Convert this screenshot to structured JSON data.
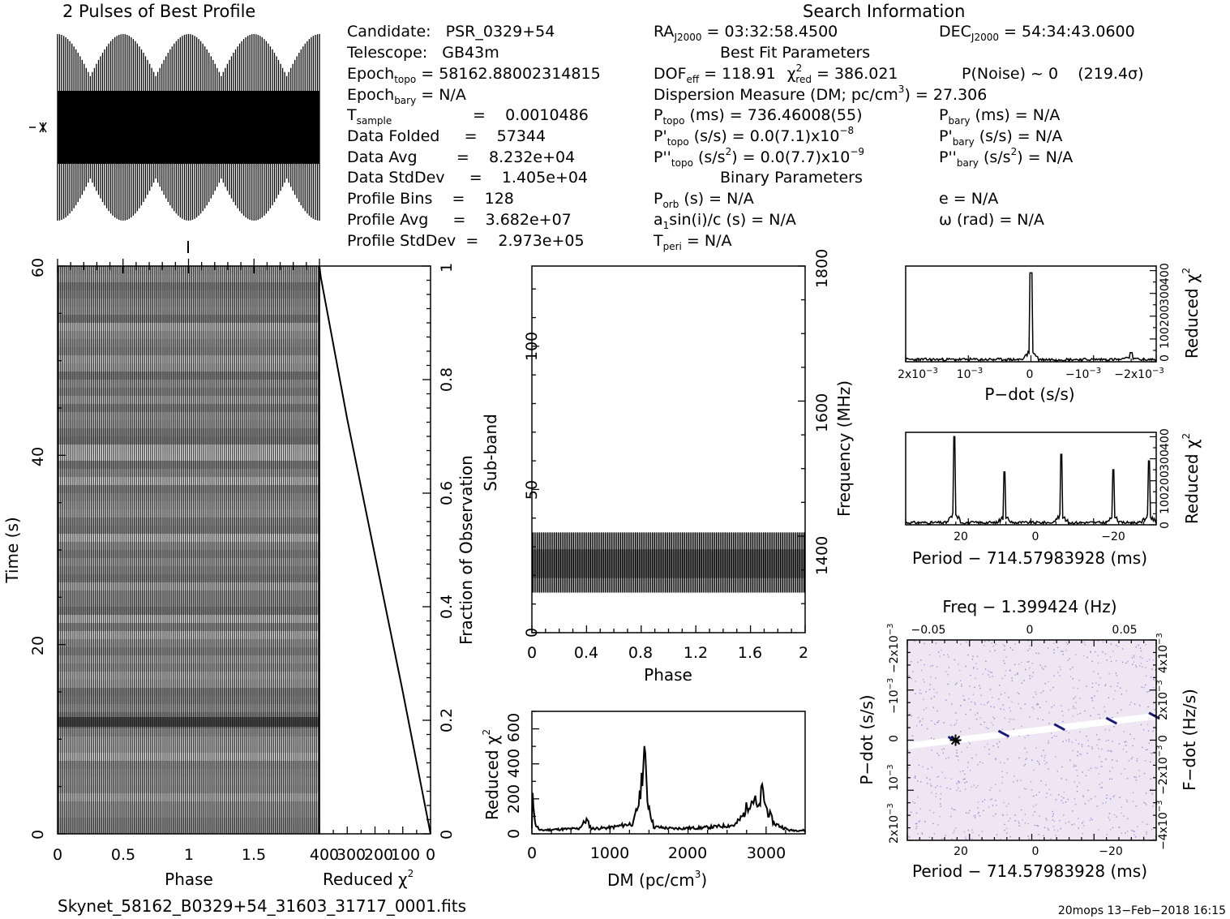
{
  "header": {
    "profile_title": "2 Pulses of Best Profile",
    "search_title": "Search Information",
    "best_fit_title": "Best Fit Parameters",
    "binary_title": "Binary Parameters"
  },
  "info_left": {
    "candidate": "Candidate:   PSR_0329+54",
    "telescope": "Telescope:   GB43m",
    "epoch_topo": " = 58162.88002314815",
    "epoch_bary": " = N/A",
    "t_sample": "=    0.0010486",
    "data_folded": "Data Folded     =    57344",
    "data_avg": "Data Avg        =    8.232e+04",
    "data_stddev": "Data StdDev     =    1.405e+04",
    "profile_bins": "Profile Bins    =    128",
    "profile_avg": "Profile Avg     =    3.682e+07",
    "profile_stddev": "Profile StdDev  =    2.973e+05"
  },
  "info_mid": {
    "ra": " = 03:32:58.4500",
    "dof": " = 118.91",
    "chi2": " = 386.021",
    "dm": "Dispersion Measure (DM; pc/cm",
    "dm_value": ") = 27.306",
    "p_topo": " (ms) =  736.46008(55)",
    "pd_topo": " (s/s) = 0.0(7.1)x10",
    "pd_exp": "−8",
    "pdd_topo": " (s/s",
    "pdd_topo_rest": ") = 0.0(7.7)x10",
    "pdd_exp": "−9",
    "p_orb": " (s) = N/A",
    "a1": "sin(i)/c (s) = N/A",
    "t_peri": " = N/A"
  },
  "info_right": {
    "dec": " = 54:34:43.0600",
    "p_noise": "P(Noise) ~ 0    (219.4σ)",
    "p_bary": " (ms) = N/A",
    "pd_bary": " (s/s) = N/A",
    "pdd_bary": " (s/s",
    "pdd_bary_rest": ") = N/A",
    "e": "e = N/A",
    "omega": "ω (rad) = N/A"
  },
  "footer": {
    "filename": "Skynet_58162_B0329+54_31603_31717_0001.fits",
    "stamp": "20mops 13−Feb−2018 16:15"
  },
  "axes": {
    "phase": "Phase",
    "time": "Time (s)",
    "reduced_chi2": "Reduced χ",
    "fraction": "Fraction of Observation",
    "subband": "Sub-band",
    "frequency": "Frequency (MHz)",
    "dm": "DM (pc/cm",
    "pdot": "P−dot (s/s)",
    "period": "Period − 714.57983928 (ms)",
    "freq_top": "Freq − 1.399424 (Hz)",
    "fdot": "F−dot (Hz/s)"
  },
  "chart_data": [
    {
      "type": "line",
      "name": "profile",
      "xlim": [
        0,
        2
      ],
      "cycles": 64,
      "envelope_period": 0.5,
      "amplitude_max": 1.0,
      "amplitude_min": 0.55
    },
    {
      "type": "heatmap",
      "name": "time-phase",
      "xlabel": "Phase",
      "ylabel": "Time (s)",
      "xlim": [
        0,
        2
      ],
      "ylim": [
        0,
        60
      ],
      "xticks": [
        0,
        0.5,
        1,
        1.5
      ],
      "yticks": [
        0,
        20,
        40,
        60
      ]
    },
    {
      "type": "line",
      "name": "reduced-chi2-vs-time",
      "xlabel": "Reduced χ2",
      "xlim": [
        400,
        0
      ],
      "xticks": [
        400,
        300,
        200,
        100,
        0
      ],
      "points": [
        [
          400,
          1.0
        ],
        [
          395,
          0.98
        ],
        [
          300,
          0.73
        ],
        [
          200,
          0.49
        ],
        [
          100,
          0.25
        ],
        [
          0,
          0.0
        ]
      ],
      "y2label": "Fraction of Observation",
      "y2ticks": [
        0,
        0.2,
        0.4,
        0.6,
        0.8,
        1
      ]
    },
    {
      "type": "heatmap",
      "name": "subband-phase",
      "xlabel": "Phase",
      "ylabel": "Sub-band",
      "xlim": [
        0,
        2
      ],
      "ylim": [
        0,
        128
      ],
      "xticks": [
        0,
        0.4,
        0.8,
        1.2,
        1.6,
        2
      ],
      "yticks": [
        0,
        50,
        100
      ],
      "band_range": [
        14,
        35
      ],
      "y2label": "Frequency (MHz)",
      "y2lim": [
        1257,
        1800
      ],
      "y2ticks": [
        1400,
        1600,
        1800
      ]
    },
    {
      "type": "line",
      "name": "dm-chi2",
      "xlabel": "DM (pc/cm3)",
      "ylabel": "Reduced χ2",
      "xlim": [
        0,
        3500
      ],
      "ylim": [
        0,
        700
      ],
      "xticks": [
        0,
        1000,
        2000,
        3000
      ],
      "yticks": [
        0,
        200,
        400,
        600
      ],
      "points": [
        [
          0,
          30
        ],
        [
          10,
          260
        ],
        [
          40,
          60
        ],
        [
          100,
          20
        ],
        [
          300,
          25
        ],
        [
          600,
          30
        ],
        [
          700,
          80
        ],
        [
          760,
          30
        ],
        [
          1000,
          35
        ],
        [
          1300,
          60
        ],
        [
          1380,
          200
        ],
        [
          1440,
          470
        ],
        [
          1480,
          200
        ],
        [
          1560,
          40
        ],
        [
          1800,
          30
        ],
        [
          2200,
          35
        ],
        [
          2600,
          50
        ],
        [
          2700,
          100
        ],
        [
          2780,
          180
        ],
        [
          2850,
          200
        ],
        [
          2900,
          130
        ],
        [
          2950,
          250
        ],
        [
          3000,
          150
        ],
        [
          3100,
          60
        ],
        [
          3300,
          20
        ],
        [
          3500,
          20
        ]
      ]
    },
    {
      "type": "line",
      "name": "pdot-chi2",
      "xlabel": "P−dot (s/s)",
      "ylabel": "Reduced χ2",
      "xlim": [
        0.0025,
        -0.0025
      ],
      "ylim": [
        0,
        420
      ],
      "xtick_labels": [
        "2x10−3",
        "10−3",
        "0",
        "−10−3",
        "−2x10−3"
      ],
      "ytick_labels": [
        "0",
        "100",
        "200",
        "300",
        "400"
      ],
      "points": [
        [
          0.0025,
          5
        ],
        [
          0.0012,
          10
        ],
        [
          0.0003,
          15
        ],
        [
          0,
          390
        ],
        [
          -0.0003,
          15
        ],
        [
          -0.0019,
          12
        ],
        [
          -0.002,
          40
        ],
        [
          -0.0021,
          10
        ],
        [
          -0.0025,
          5
        ]
      ]
    },
    {
      "type": "line",
      "name": "period-chi2",
      "xlabel": "Period − 714.57983928 (ms)",
      "ylabel": "Reduced χ2",
      "xlim": [
        35,
        -32
      ],
      "ylim": [
        0,
        420
      ],
      "xticks": [
        20,
        0,
        -20
      ],
      "ytick_labels": [
        "0",
        "100",
        "200",
        "300",
        "400"
      ],
      "points": [
        [
          35,
          5
        ],
        [
          22,
          400
        ],
        [
          8.5,
          240
        ],
        [
          -6.5,
          320
        ],
        [
          -20.5,
          250
        ],
        [
          -30,
          290
        ],
        [
          -32,
          10
        ]
      ]
    },
    {
      "type": "heatmap",
      "name": "period-pdot",
      "xlabel": "Period − 714.57983928 (ms)",
      "ylabel": "P−dot (s/s)",
      "xlim": [
        35,
        -32
      ],
      "xticks": [
        20,
        0,
        -20
      ],
      "ytick_labels": [
        "2x10−3",
        "10−3",
        "0",
        "−10−3",
        "−2x10−3"
      ],
      "top_ticks": [
        -0.05,
        0,
        0.05
      ],
      "right_tick_labels": [
        "−4x10−3",
        "−2x10−3",
        "0",
        "2x10−3",
        "4x10−3"
      ],
      "best_marker": [
        22,
        0
      ]
    }
  ]
}
